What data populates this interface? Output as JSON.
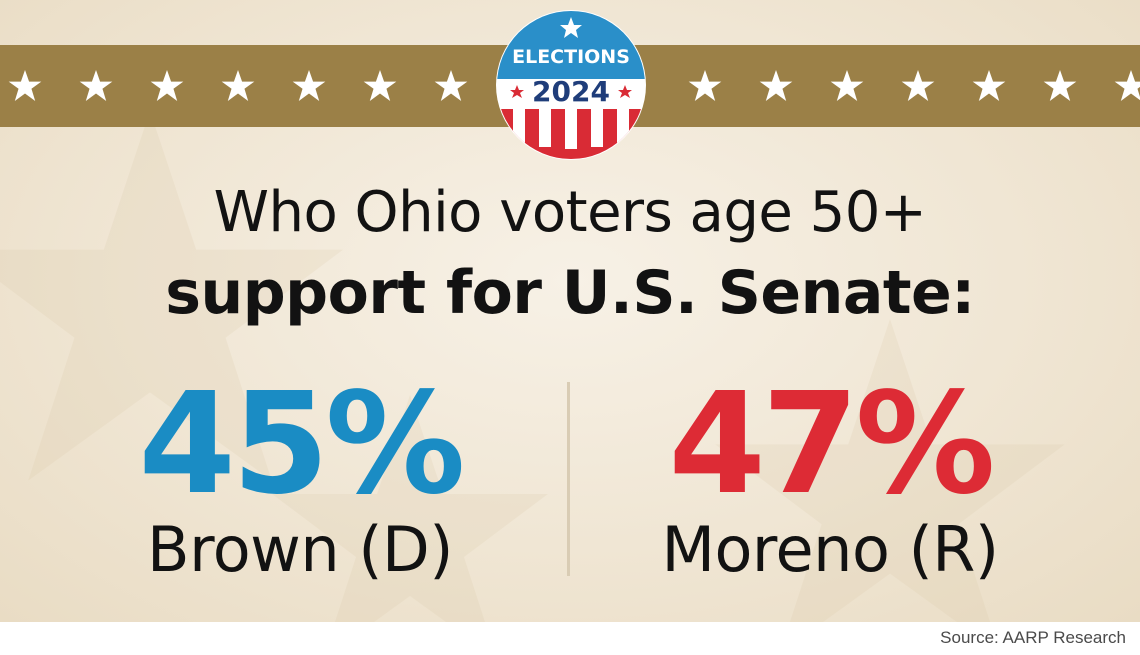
{
  "badge": {
    "line1": "ELECTIONS",
    "line2": "2024",
    "icon": "elections-2024-badge-icon"
  },
  "banner": {
    "color": "#9b8047",
    "star_icon": "star-icon",
    "star_count_left": 7,
    "star_count_right": 7
  },
  "headline": {
    "line1": "Who Ohio voters age 50+",
    "line2": "support for U.S. Senate:"
  },
  "results": [
    {
      "percent": "45%",
      "candidate": "Brown (D)",
      "color": "#1a8cc4"
    },
    {
      "percent": "47%",
      "candidate": "Moreno (R)",
      "color": "#dd2b35"
    }
  ],
  "source": "Source: AARP Research"
}
